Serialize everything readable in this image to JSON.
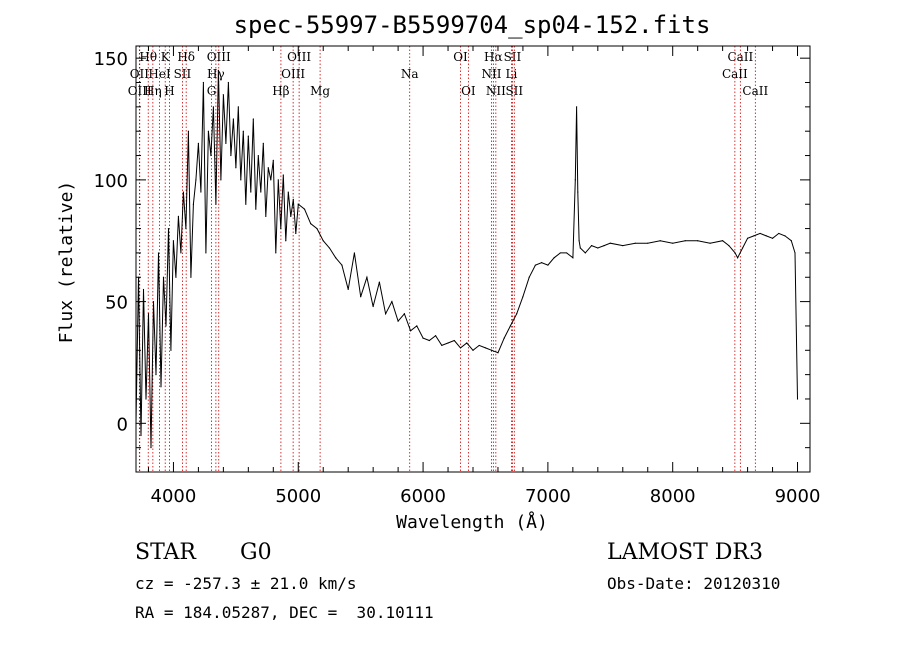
{
  "chart_data": {
    "type": "line",
    "title": "spec-55997-B5599704_sp04-152.fits",
    "xlabel": "Wavelength (Å)",
    "ylabel": "Flux (relative)",
    "xlim": [
      3700,
      9100
    ],
    "ylim": [
      -20,
      155
    ],
    "xticks": [
      4000,
      5000,
      6000,
      7000,
      8000,
      9000
    ],
    "yticks": [
      0,
      50,
      100,
      150
    ],
    "series": [
      {
        "name": "flux",
        "x": [
          3700,
          3720,
          3740,
          3760,
          3780,
          3800,
          3820,
          3840,
          3860,
          3880,
          3900,
          3920,
          3940,
          3960,
          3980,
          4000,
          4020,
          4040,
          4060,
          4080,
          4100,
          4120,
          4140,
          4160,
          4180,
          4200,
          4220,
          4240,
          4260,
          4280,
          4300,
          4320,
          4340,
          4360,
          4380,
          4400,
          4420,
          4440,
          4460,
          4480,
          4500,
          4520,
          4540,
          4560,
          4580,
          4600,
          4620,
          4640,
          4660,
          4680,
          4700,
          4720,
          4740,
          4760,
          4780,
          4800,
          4820,
          4840,
          4860,
          4880,
          4900,
          4920,
          4940,
          4960,
          4980,
          5000,
          5050,
          5100,
          5150,
          5200,
          5250,
          5300,
          5350,
          5400,
          5450,
          5500,
          5550,
          5600,
          5650,
          5700,
          5750,
          5800,
          5850,
          5900,
          5950,
          6000,
          6050,
          6100,
          6150,
          6200,
          6250,
          6300,
          6350,
          6400,
          6450,
          6500,
          6550,
          6600,
          6650,
          6700,
          6750,
          6800,
          6850,
          6900,
          6950,
          7000,
          7050,
          7100,
          7150,
          7200,
          7220,
          7230,
          7240,
          7250,
          7260,
          7300,
          7350,
          7400,
          7450,
          7500,
          7600,
          7700,
          7800,
          7900,
          8000,
          8100,
          8200,
          8300,
          8400,
          8450,
          8500,
          8520,
          8560,
          8600,
          8650,
          8700,
          8750,
          8800,
          8850,
          8900,
          8950,
          8980,
          9000
        ],
        "values": [
          0,
          60,
          -5,
          55,
          10,
          45,
          -10,
          50,
          20,
          70,
          15,
          60,
          40,
          80,
          30,
          75,
          60,
          85,
          70,
          95,
          80,
          120,
          60,
          90,
          100,
          115,
          95,
          140,
          70,
          120,
          110,
          130,
          90,
          145,
          100,
          135,
          115,
          140,
          110,
          125,
          105,
          130,
          100,
          120,
          90,
          118,
          95,
          125,
          88,
          110,
          95,
          115,
          85,
          105,
          100,
          108,
          70,
          100,
          80,
          102,
          75,
          95,
          85,
          92,
          78,
          90,
          88,
          82,
          80,
          75,
          72,
          68,
          65,
          55,
          70,
          52,
          60,
          48,
          58,
          45,
          50,
          42,
          45,
          38,
          40,
          35,
          34,
          36,
          32,
          33,
          34,
          31,
          33,
          30,
          32,
          31,
          30,
          29,
          35,
          40,
          45,
          52,
          60,
          65,
          66,
          65,
          68,
          70,
          70,
          68,
          100,
          130,
          95,
          75,
          72,
          70,
          73,
          72,
          73,
          74,
          73,
          74,
          74,
          75,
          74,
          75,
          75,
          74,
          75,
          73,
          70,
          68,
          72,
          76,
          77,
          78,
          77,
          76,
          78,
          77,
          75,
          70,
          10
        ]
      }
    ],
    "spectral_lines": [
      {
        "label": "Hθ",
        "wl": 3798,
        "row": 0
      },
      {
        "label": "OII",
        "wl": 3727,
        "row": 1
      },
      {
        "label": "OIII",
        "wl": 3730,
        "row": 2
      },
      {
        "label": "K",
        "wl": 3934,
        "row": 0
      },
      {
        "label": "HeI",
        "wl": 3889,
        "row": 1
      },
      {
        "label": "Hη",
        "wl": 3835,
        "row": 2
      },
      {
        "label": "Hδ",
        "wl": 4102,
        "row": 0
      },
      {
        "label": "SII",
        "wl": 4072,
        "row": 1
      },
      {
        "label": "H",
        "wl": 3968,
        "row": 2
      },
      {
        "label": "OIII",
        "wl": 4363,
        "row": 0
      },
      {
        "label": "Hγ",
        "wl": 4340,
        "row": 1
      },
      {
        "label": "G",
        "wl": 4305,
        "row": 2
      },
      {
        "label": "OIII",
        "wl": 5007,
        "row": 0
      },
      {
        "label": "OIII",
        "wl": 4959,
        "row": 1
      },
      {
        "label": "Hβ",
        "wl": 4861,
        "row": 2
      },
      {
        "label": "Mg",
        "wl": 5175,
        "row": 2
      },
      {
        "label": "Na",
        "wl": 5893,
        "row": 1
      },
      {
        "label": "OI",
        "wl": 6300,
        "row": 0
      },
      {
        "label": "OI",
        "wl": 6363,
        "row": 2
      },
      {
        "label": "Hα",
        "wl": 6563,
        "row": 0
      },
      {
        "label": "NII",
        "wl": 6548,
        "row": 1
      },
      {
        "label": "NII",
        "wl": 6583,
        "row": 2
      },
      {
        "label": "SII",
        "wl": 6716,
        "row": 0
      },
      {
        "label": "Li",
        "wl": 6708,
        "row": 1
      },
      {
        "label": "SII",
        "wl": 6731,
        "row": 2
      },
      {
        "label": "CaII",
        "wl": 8542,
        "row": 0
      },
      {
        "label": "CaII",
        "wl": 8498,
        "row": 1
      },
      {
        "label": "CaII",
        "wl": 8662,
        "row": 2
      }
    ]
  },
  "info": {
    "object_class": "STAR",
    "subclass": "G0",
    "survey": "LAMOST DR3",
    "redshift": "cz = -257.3 ± 21.0 km/s",
    "obs_date": "Obs-Date: 20120310",
    "coords": "RA = 184.05287, DEC =  30.10111"
  },
  "colors": {
    "line": "#000000",
    "marker": "#cc0000"
  }
}
